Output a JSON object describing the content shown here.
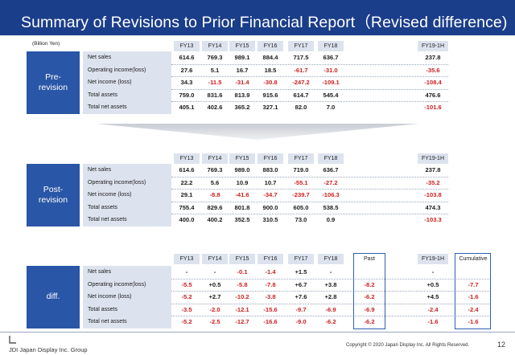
{
  "title": "Summary of Revisions to Prior Financial Report（Revised difference)",
  "unit": "(Billion Yen)",
  "columns": [
    "FY13",
    "FY14",
    "FY15",
    "FY16",
    "FY17",
    "FY18"
  ],
  "column_h1": "FY19-1H",
  "rows": [
    "Net sales",
    "Operating income(loss)",
    "Net income (loss)",
    "Total assets",
    "Total net assets"
  ],
  "pre": {
    "label": "Pre-\nrevision",
    "values": [
      [
        "614.6",
        "769.3",
        "989.1",
        "884.4",
        "717.5",
        "636.7"
      ],
      [
        "27.6",
        "5.1",
        "16.7",
        "18.5",
        "-61.7",
        "-31.0"
      ],
      [
        "34.3",
        "-11.5",
        "-31.4",
        "-30.8",
        "-247.2",
        "-109.1"
      ],
      [
        "759.0",
        "831.6",
        "813.9",
        "915.6",
        "614.7",
        "545.4"
      ],
      [
        "405.1",
        "402.6",
        "365.2",
        "327.1",
        "82.0",
        "7.0"
      ]
    ],
    "h1": [
      "237.8",
      "-35.6",
      "-108.4",
      "476.6",
      "-101.6"
    ]
  },
  "post": {
    "label": "Post-\nrevision",
    "values": [
      [
        "614.6",
        "769.3",
        "989.0",
        "883.0",
        "719.0",
        "636.7"
      ],
      [
        "22.2",
        "5.6",
        "10.9",
        "10.7",
        "-55.1",
        "-27.2"
      ],
      [
        "29.1",
        "-8.8",
        "-41.6",
        "-34.7",
        "-239.7",
        "-106.3"
      ],
      [
        "755.4",
        "829.6",
        "801.8",
        "900.0",
        "605.0",
        "538.5"
      ],
      [
        "400.0",
        "400.2",
        "352.5",
        "310.5",
        "73.0",
        "0.9"
      ]
    ],
    "h1": [
      "237.8",
      "-35.2",
      "-103.8",
      "474.3",
      "-103.3"
    ]
  },
  "diff": {
    "label": "diff.",
    "past_header": "Past",
    "cumulative_header": "Cumulative",
    "values": [
      [
        "-",
        "-",
        "-0.1",
        "-1.4",
        "+1.5",
        "-"
      ],
      [
        "-5.5",
        "+0.5",
        "-5.8",
        "-7.8",
        "+6.7",
        "+3.8"
      ],
      [
        "-5.2",
        "+2.7",
        "-10.2",
        "-3.8",
        "+7.6",
        "+2.8"
      ],
      [
        "-3.5",
        "-2.0",
        "-12.1",
        "-15.6",
        "-9.7",
        "-6.9"
      ],
      [
        "-5.2",
        "-2.5",
        "-12.7",
        "-16.6",
        "-9.0",
        "-6.2"
      ]
    ],
    "past": [
      "",
      "-8.2",
      "-6.2",
      "-6.9",
      "-6.2"
    ],
    "h1": [
      "-",
      "+0.5",
      "+4.5",
      "-2.4",
      "-1.6"
    ],
    "cumulative": [
      "",
      "-7.7",
      "-1.6",
      "-2.4",
      "-1.6"
    ]
  },
  "footer": {
    "company": "JDI Japan Display Inc. Group",
    "copyright": "Copyright © 2020  Japan Display Inc.   All Rights Reserved.",
    "page": "12"
  },
  "colors": {
    "title_bg": "#1b3e8a",
    "label_bg": "#2956a6",
    "negative": "#cc2020",
    "header_bg": "#dde3ee"
  }
}
